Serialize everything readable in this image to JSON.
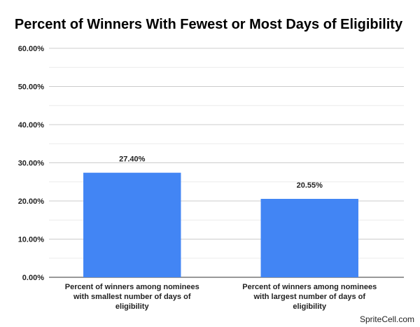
{
  "chart_data": {
    "type": "bar",
    "title": "Percent of Winners With Fewest or Most Days of Eligibility",
    "categories": [
      [
        "Percent of winners among nominees",
        "with smallest number of days of",
        "eligibility"
      ],
      [
        "Percent of winners among nominees",
        "with largest number of days of",
        "eligibility"
      ]
    ],
    "values": [
      27.4,
      20.55
    ],
    "data_labels": [
      "27.40%",
      "20.55%"
    ],
    "ylim": [
      0,
      60
    ],
    "yticks": [
      0,
      10,
      20,
      30,
      40,
      50,
      60
    ],
    "ytick_labels": [
      "0.00%",
      "10.00%",
      "20.00%",
      "30.00%",
      "40.00%",
      "50.00%",
      "60.00%"
    ],
    "grid": true,
    "bar_color": "#4285f4"
  },
  "watermark": "SpriteCell.com"
}
